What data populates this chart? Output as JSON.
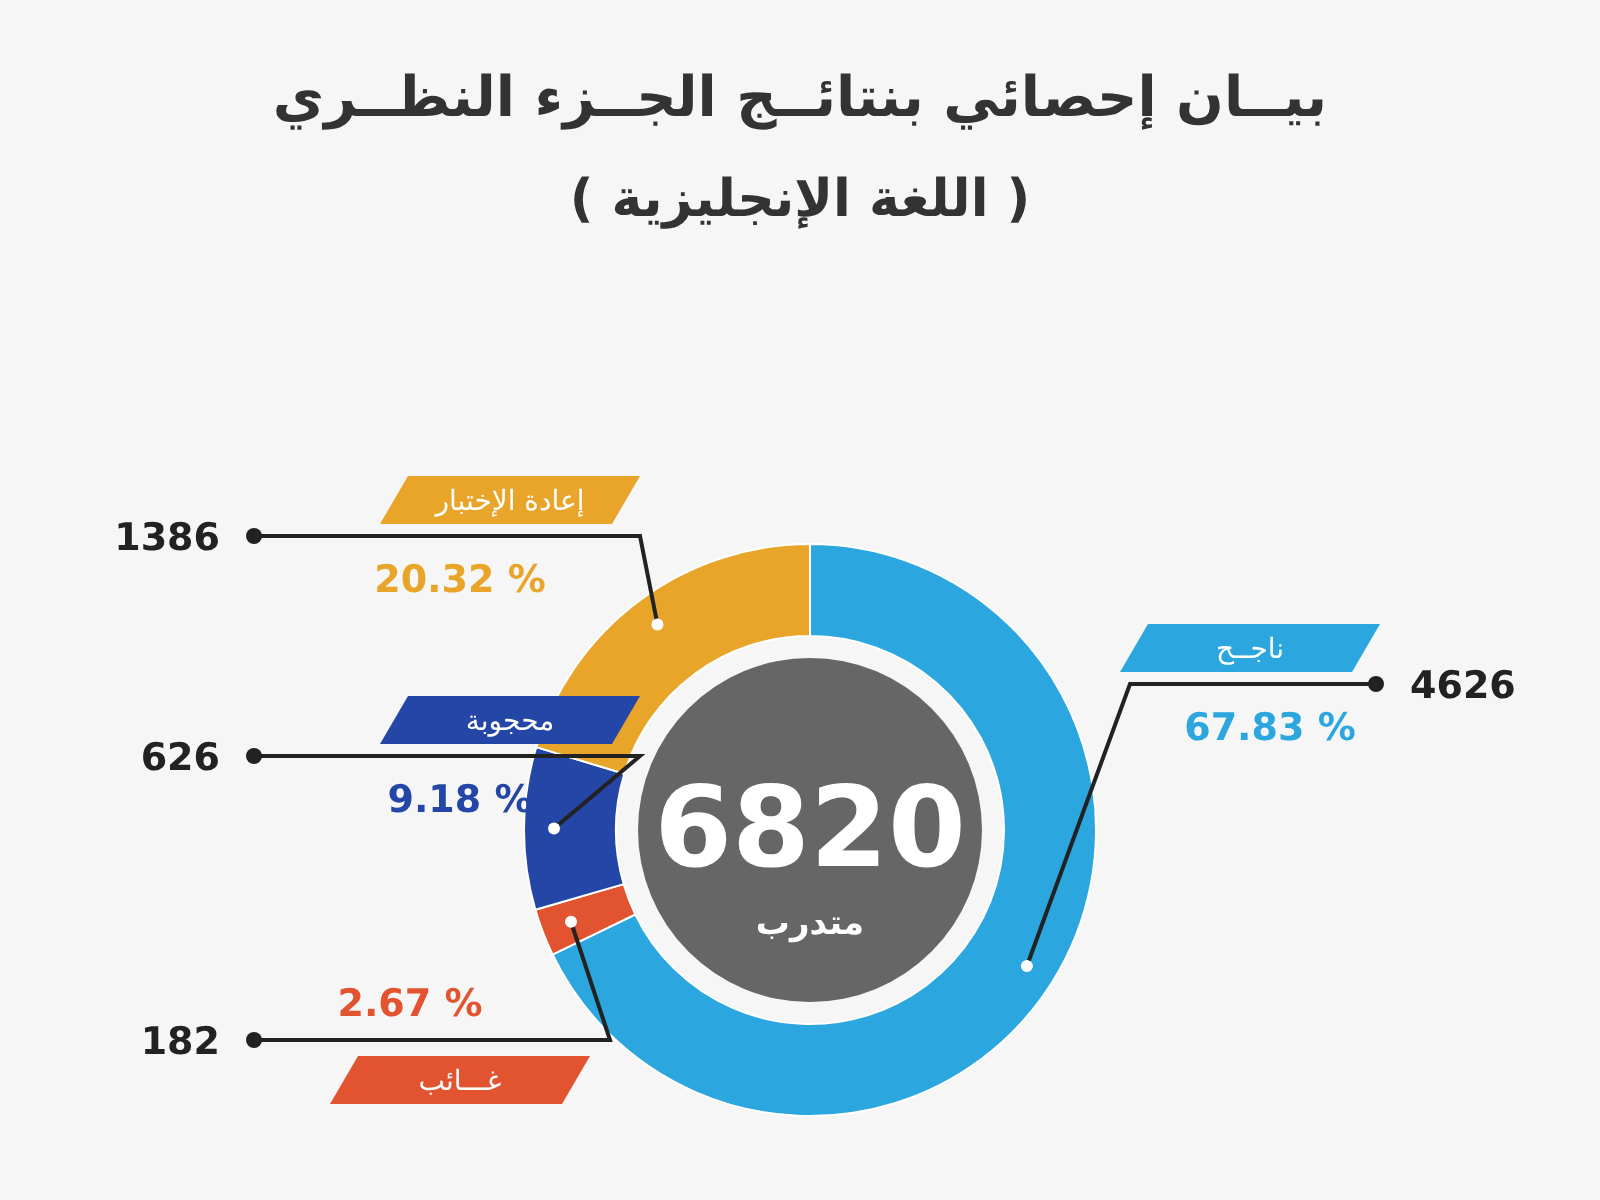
{
  "chart_data": {
    "type": "donut",
    "title": "بيــان إحصائي بنتائــج الجــزء النظــري",
    "subtitle": "( اللغة الإنجليزية )",
    "categories": [
      "ناجــح",
      "غـــائب",
      "محجوبة",
      "إعادة الإختبار"
    ],
    "values": [
      67.83,
      2.67,
      9.18,
      20.32
    ],
    "colors": [
      "#2ba6df",
      "#e2532f",
      "#2446a6",
      "#e9a52a"
    ],
    "value_labels": [
      "67.83 %",
      "2.67 %",
      "9.18 %",
      "20.32 %"
    ],
    "annotations": [
      "6820",
      "متدرب",
      "4626",
      "182",
      "626",
      "1386"
    ]
  }
}
